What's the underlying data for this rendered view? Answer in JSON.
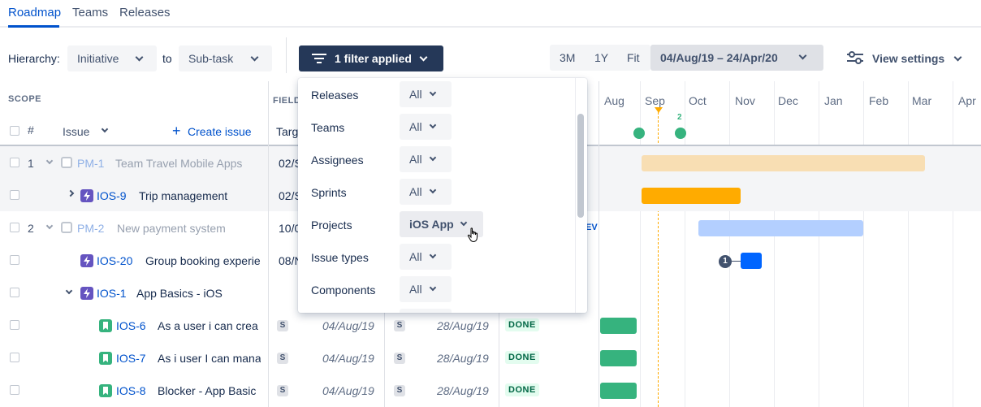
{
  "nav": {
    "tabs": [
      {
        "label": "Roadmap",
        "active": true
      },
      {
        "label": "Teams"
      },
      {
        "label": "Releases"
      }
    ]
  },
  "toolbar": {
    "hierarchy_label": "Hierarchy:",
    "from_level": "Initiative",
    "to_label": "to",
    "to_level": "Sub-task",
    "filter_label": "1 filter applied",
    "time_buttons": [
      "3M",
      "1Y",
      "Fit"
    ],
    "date_range": "04/Aug/19 – 24/Apr/20",
    "view_settings": "View settings"
  },
  "table": {
    "scope_header": "SCOPE",
    "fields_header": "FIELD",
    "num_header": "#",
    "issue_header": "Issue",
    "create_issue": "Create issue",
    "target_header": "Targ",
    "rows": [
      {
        "num": "1",
        "key": "PM-1",
        "summary": "Team Travel Mobile Apps",
        "target": "02/S",
        "type": "initiative",
        "dim": true
      },
      {
        "num": "",
        "key": "IOS-9",
        "summary": "Trip management",
        "target": "02/S",
        "type": "epic"
      },
      {
        "num": "2",
        "key": "PM-2",
        "summary": "New payment system",
        "target": "10/0",
        "type": "initiative",
        "dim": true
      },
      {
        "num": "",
        "key": "IOS-20",
        "summary": "Group booking experie",
        "target": "08/N",
        "type": "epic"
      },
      {
        "num": "",
        "key": "IOS-1",
        "summary": "App Basics - iOS",
        "target": "",
        "type": "epic"
      },
      {
        "num": "",
        "key": "IOS-6",
        "summary": "As a user i can crea",
        "start_badge": "S",
        "start": "04/Aug/19",
        "end_badge": "S",
        "end": "28/Aug/19",
        "status": "DONE",
        "type": "story"
      },
      {
        "num": "",
        "key": "IOS-7",
        "summary": "As i user I can mana",
        "start_badge": "S",
        "start": "04/Aug/19",
        "end_badge": "S",
        "end": "28/Aug/19",
        "status": "DONE",
        "type": "story"
      },
      {
        "num": "",
        "key": "IOS-8",
        "summary": "Blocker - App Basic",
        "start_badge": "S",
        "start": "04/Aug/19",
        "end_badge": "S",
        "end": "28/Aug/19",
        "status": "DONE",
        "type": "story"
      }
    ]
  },
  "timeline": {
    "months": [
      "Aug",
      "Sep",
      "Oct",
      "Nov",
      "Dec",
      "Jan",
      "Feb",
      "Mar",
      "Apr"
    ],
    "release_count": "2",
    "dependency_count": "1",
    "partial_label": "EV"
  },
  "filter_dropdown": {
    "filters": [
      {
        "label": "Releases",
        "value": "All"
      },
      {
        "label": "Teams",
        "value": "All"
      },
      {
        "label": "Assignees",
        "value": "All"
      },
      {
        "label": "Sprints",
        "value": "All"
      },
      {
        "label": "Projects",
        "value": "iOS App",
        "selected": true
      },
      {
        "label": "Issue types",
        "value": "All"
      },
      {
        "label": "Components",
        "value": "All"
      }
    ]
  },
  "colors": {
    "accent": "#0052CC",
    "filter_button": "#253858",
    "bar_initiative": "#F8DEB3",
    "bar_epic": "#FFAB00",
    "bar_light_blue": "#B3CFFF",
    "bar_blue": "#0065FF",
    "bar_green": "#36B37E",
    "release_marker": "#36B37E"
  }
}
